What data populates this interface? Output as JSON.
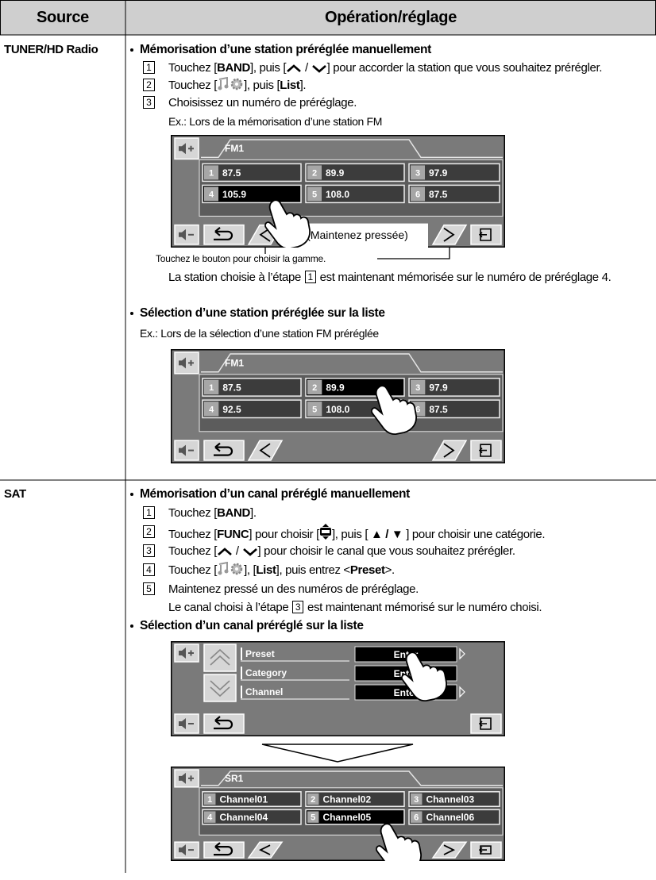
{
  "header": {
    "source": "Source",
    "operation": "Opération/réglage"
  },
  "rows": [
    {
      "source": "TUNER/HD Radio",
      "sections": [
        {
          "title": "Mémorisation d’une station préréglée manuellement",
          "steps": [
            {
              "number": "1",
              "text": [
                "Touchez [",
                "BAND",
                "], puis [",
                " / ",
                "] pour accorder la station que vous souhaitez prérégler."
              ]
            },
            {
              "number": "2",
              "text": [
                "Touchez [",
                "], puis [",
                "List",
                "]."
              ]
            },
            {
              "number": "3",
              "text": [
                "Choisissez un numéro de préréglage."
              ]
            }
          ],
          "example": "Ex.: Lors de la mémorisation d’une station FM",
          "screen": {
            "band": "FM1",
            "presets": [
              {
                "number": "1",
                "label": "87.5"
              },
              {
                "number": "2",
                "label": "89.9"
              },
              {
                "number": "3",
                "label": "97.9"
              },
              {
                "number": "4",
                "label": "105.9"
              },
              {
                "number": "5",
                "label": "108.0"
              },
              {
                "number": "6",
                "label": "87.5"
              }
            ],
            "callout": "(Maintenez pressée)"
          },
          "note": "Touchez le bouton pour choisir la gamme.",
          "result": [
            "La station choisie à l’étape ",
            "1",
            " est maintenant mémorisée sur le numéro de préréglage 4."
          ]
        },
        {
          "title": "Sélection d’une station préréglée sur la liste",
          "example": "Ex.: Lors de la sélection d’une station FM préréglée",
          "screen": {
            "band": "FM1",
            "presets": [
              {
                "number": "1",
                "label": "87.5"
              },
              {
                "number": "2",
                "label": "89.9"
              },
              {
                "number": "3",
                "label": "97.9"
              },
              {
                "number": "4",
                "label": "92.5"
              },
              {
                "number": "5",
                "label": "108.0"
              },
              {
                "number": "6",
                "label": "87.5"
              }
            ]
          }
        }
      ]
    },
    {
      "source": "SAT",
      "sections": [
        {
          "title": "Mémorisation d’un canal préréglé manuellement",
          "steps": [
            {
              "number": "1",
              "text": [
                "Touchez [",
                "BAND",
                "]."
              ]
            },
            {
              "number": "2",
              "text": [
                "Touchez [",
                "FUNC",
                "] pour choisir [",
                "], puis [ ",
                "▲ / ▼",
                " ] pour choisir une catégorie."
              ]
            },
            {
              "number": "3",
              "text": [
                "Touchez [",
                " / ",
                "] pour choisir le canal que vous souhaitez prérégler."
              ]
            },
            {
              "number": "4",
              "text": [
                "Touchez [",
                "], [",
                "List",
                "], puis entrez <",
                "Preset",
                ">."
              ]
            },
            {
              "number": "5",
              "text": [
                "Maintenez pressé un des numéros de préréglage."
              ]
            }
          ],
          "result": [
            "Le canal choisi à l’étape ",
            "3",
            " est maintenant mémorisé sur le numéro choisi."
          ]
        },
        {
          "title": "Sélection d’un canal préréglé sur la liste",
          "menu": [
            {
              "label": "Preset",
              "action": "Enter"
            },
            {
              "label": "Category",
              "action": "Enter"
            },
            {
              "label": "Channel",
              "action": "Enter"
            }
          ],
          "screen": {
            "band": "SR1",
            "presets": [
              {
                "number": "1",
                "label": "Channel01"
              },
              {
                "number": "2",
                "label": "Channel02"
              },
              {
                "number": "3",
                "label": "Channel03"
              },
              {
                "number": "4",
                "label": "Channel04"
              },
              {
                "number": "5",
                "label": "Channel05"
              },
              {
                "number": "6",
                "label": "Channel06"
              }
            ]
          }
        }
      ]
    }
  ]
}
